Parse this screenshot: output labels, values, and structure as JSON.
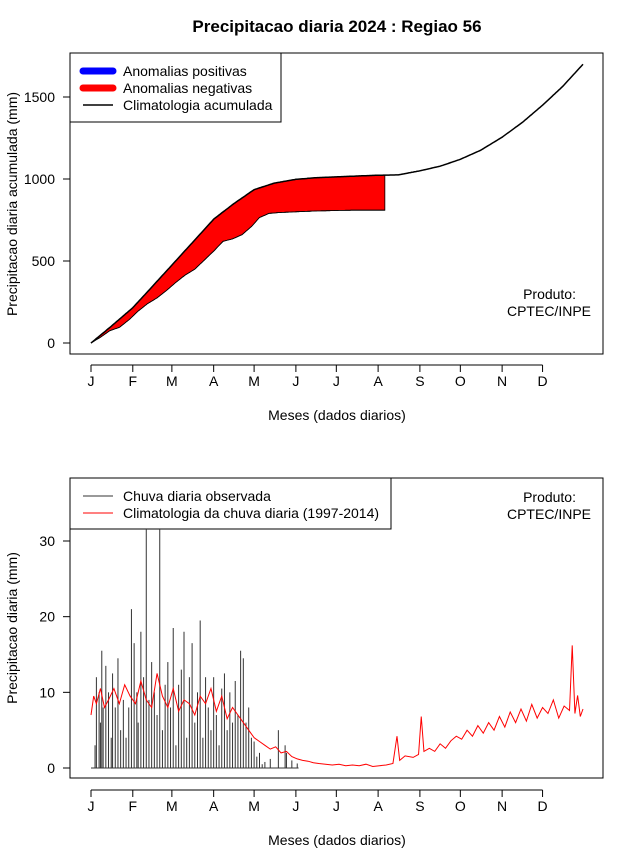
{
  "title": "Precipitacao diaria 2024 : Regiao 56",
  "colors": {
    "positive": "#0000ff",
    "negative": "#ff0000",
    "climatology": "#000000",
    "observed": "#333333",
    "clim_daily": "#ff0000"
  },
  "chart_data": [
    {
      "type": "area",
      "xlabel": "Meses (dados diarios)",
      "ylabel": "Precipitacao diaria acumulada (mm)",
      "xlim": [
        1,
        366
      ],
      "ylim": [
        0,
        1700
      ],
      "yticks": [
        0,
        500,
        1000,
        1500
      ],
      "month_labels": [
        "J",
        "F",
        "M",
        "A",
        "M",
        "J",
        "J",
        "A",
        "S",
        "O",
        "N",
        "D"
      ],
      "month_start_days": [
        1,
        32,
        61,
        92,
        122,
        153,
        183,
        214,
        245,
        275,
        306,
        336
      ],
      "legend_position": "top-left",
      "legend": [
        {
          "label": "Anomalias positivas",
          "style": "thick-line",
          "color": "#0000ff"
        },
        {
          "label": "Anomalias negativas",
          "style": "thick-line",
          "color": "#ff0000"
        },
        {
          "label": "Climatologia acumulada",
          "style": "thin-line",
          "color": "#000000"
        }
      ],
      "credit": [
        "Produto:",
        "CPTEC/INPE"
      ],
      "credit_position": "bottom-right",
      "series": [
        {
          "name": "Climatologia acumulada",
          "x": [
            1,
            15,
            32,
            46,
            61,
            76,
            92,
            107,
            122,
            137,
            153,
            168,
            183,
            198,
            214,
            229,
            245,
            260,
            275,
            290,
            306,
            321,
            336,
            351,
            366
          ],
          "values": [
            0,
            95,
            215,
            340,
            475,
            610,
            755,
            850,
            935,
            975,
            998,
            1008,
            1013,
            1018,
            1023,
            1025,
            1050,
            1078,
            1120,
            1175,
            1255,
            1345,
            1450,
            1565,
            1700
          ]
        },
        {
          "name": "Chuva acumulada observada",
          "x": [
            1,
            8,
            15,
            22,
            29,
            36,
            43,
            50,
            57,
            64,
            71,
            78,
            85,
            92,
            99,
            106,
            113,
            120,
            126,
            133,
            140,
            153,
            168,
            183,
            198,
            214,
            219
          ],
          "values": [
            0,
            35,
            75,
            95,
            140,
            195,
            240,
            275,
            320,
            370,
            415,
            450,
            505,
            560,
            620,
            635,
            660,
            710,
            765,
            790,
            795,
            800,
            805,
            808,
            810,
            810,
            810
          ]
        }
      ]
    },
    {
      "type": "line",
      "xlabel": "Meses (dados diarios)",
      "ylabel": "Precipitacao diaria (mm)",
      "xlim": [
        1,
        366
      ],
      "ylim": [
        0,
        36
      ],
      "yticks": [
        0,
        10,
        20,
        30
      ],
      "month_labels": [
        "J",
        "F",
        "M",
        "A",
        "M",
        "J",
        "J",
        "A",
        "S",
        "O",
        "N",
        "D"
      ],
      "month_start_days": [
        1,
        32,
        61,
        92,
        122,
        153,
        183,
        214,
        245,
        275,
        306,
        336
      ],
      "legend_position": "top-left",
      "legend": [
        {
          "label": "Chuva diaria observada",
          "color": "#333333"
        },
        {
          "label": "Climatologia da chuva diaria (1997-2014)",
          "color": "#ff0000"
        }
      ],
      "credit": [
        "Produto:",
        "CPTEC/INPE"
      ],
      "credit_position": "top-right",
      "clim_daily": {
        "x": [
          1,
          3,
          5,
          8,
          11,
          14,
          18,
          22,
          26,
          30,
          34,
          38,
          42,
          46,
          50,
          54,
          58,
          62,
          66,
          70,
          74,
          78,
          82,
          86,
          90,
          94,
          98,
          102,
          106,
          110,
          114,
          118,
          122,
          126,
          130,
          134,
          138,
          142,
          146,
          150,
          154,
          158,
          162,
          166,
          170,
          175,
          180,
          185,
          190,
          195,
          200,
          205,
          210,
          215,
          220,
          225,
          228,
          230,
          234,
          240,
          244,
          246,
          248,
          252,
          256,
          260,
          264,
          268,
          272,
          276,
          280,
          284,
          288,
          292,
          296,
          300,
          304,
          308,
          312,
          316,
          320,
          324,
          328,
          332,
          336,
          340,
          344,
          348,
          352,
          356,
          358,
          360,
          362,
          364,
          366
        ],
        "values": [
          7.0,
          9.5,
          8.5,
          10.5,
          8.0,
          9.0,
          10.5,
          8.5,
          11.0,
          9.5,
          8.5,
          11.5,
          9.0,
          8.0,
          12.5,
          9.5,
          8.0,
          10.5,
          7.5,
          9.0,
          8.5,
          7.0,
          9.5,
          8.5,
          10.5,
          7.5,
          9.5,
          6.5,
          8.0,
          7.0,
          6.0,
          5.0,
          4.0,
          3.5,
          3.0,
          2.5,
          2.8,
          2.0,
          2.2,
          1.5,
          1.2,
          1.0,
          0.9,
          0.7,
          0.6,
          0.5,
          0.4,
          0.5,
          0.3,
          0.4,
          0.3,
          0.5,
          0.2,
          0.3,
          0.4,
          0.6,
          4.2,
          1.0,
          1.6,
          1.4,
          1.8,
          6.8,
          2.2,
          2.6,
          2.2,
          3.2,
          2.6,
          3.6,
          4.2,
          3.8,
          5.0,
          4.2,
          5.6,
          4.6,
          6.0,
          5.0,
          6.8,
          5.4,
          7.4,
          6.0,
          7.8,
          6.2,
          8.4,
          6.6,
          8.0,
          7.2,
          9.0,
          6.6,
          8.2,
          7.6,
          16.2,
          7.2,
          9.6,
          6.8,
          7.8
        ]
      },
      "observed_bars": {
        "days": [
          4,
          5,
          7,
          8,
          9,
          10,
          12,
          14,
          16,
          17,
          19,
          21,
          23,
          25,
          27,
          29,
          31,
          33,
          35,
          36,
          38,
          40,
          42,
          44,
          46,
          48,
          50,
          52,
          54,
          56,
          58,
          60,
          62,
          64,
          66,
          68,
          70,
          72,
          74,
          76,
          78,
          80,
          82,
          84,
          86,
          88,
          90,
          92,
          94,
          96,
          98,
          100,
          102,
          104,
          106,
          108,
          110,
          112,
          114,
          116,
          118,
          120,
          122,
          124,
          126,
          128,
          130,
          134,
          140,
          145,
          146,
          150,
          154
        ],
        "values": [
          3.0,
          12.0,
          10.0,
          6.0,
          15.5,
          8.0,
          13.5,
          10.0,
          4.0,
          12.5,
          8.0,
          14.5,
          5.0,
          9.0,
          4.0,
          8.0,
          21.0,
          16.5,
          10.0,
          6.0,
          18.0,
          12.0,
          31.5,
          9.0,
          14.0,
          10.0,
          7.0,
          31.5,
          5.0,
          11.0,
          14.0,
          8.0,
          18.5,
          3.0,
          11.0,
          13.0,
          18.0,
          4.0,
          12.0,
          16.5,
          6.0,
          10.0,
          19.5,
          4.0,
          12.0,
          8.0,
          5.0,
          12.0,
          7.0,
          3.0,
          10.5,
          12.5,
          5.0,
          10.0,
          6.0,
          11.5,
          7.0,
          15.5,
          14.5,
          6.0,
          8.0,
          4.0,
          3.5,
          1.5,
          2.0,
          0.5,
          0.8,
          1.2,
          5.0,
          3.0,
          2.0,
          1.0,
          0.6
        ]
      }
    }
  ]
}
